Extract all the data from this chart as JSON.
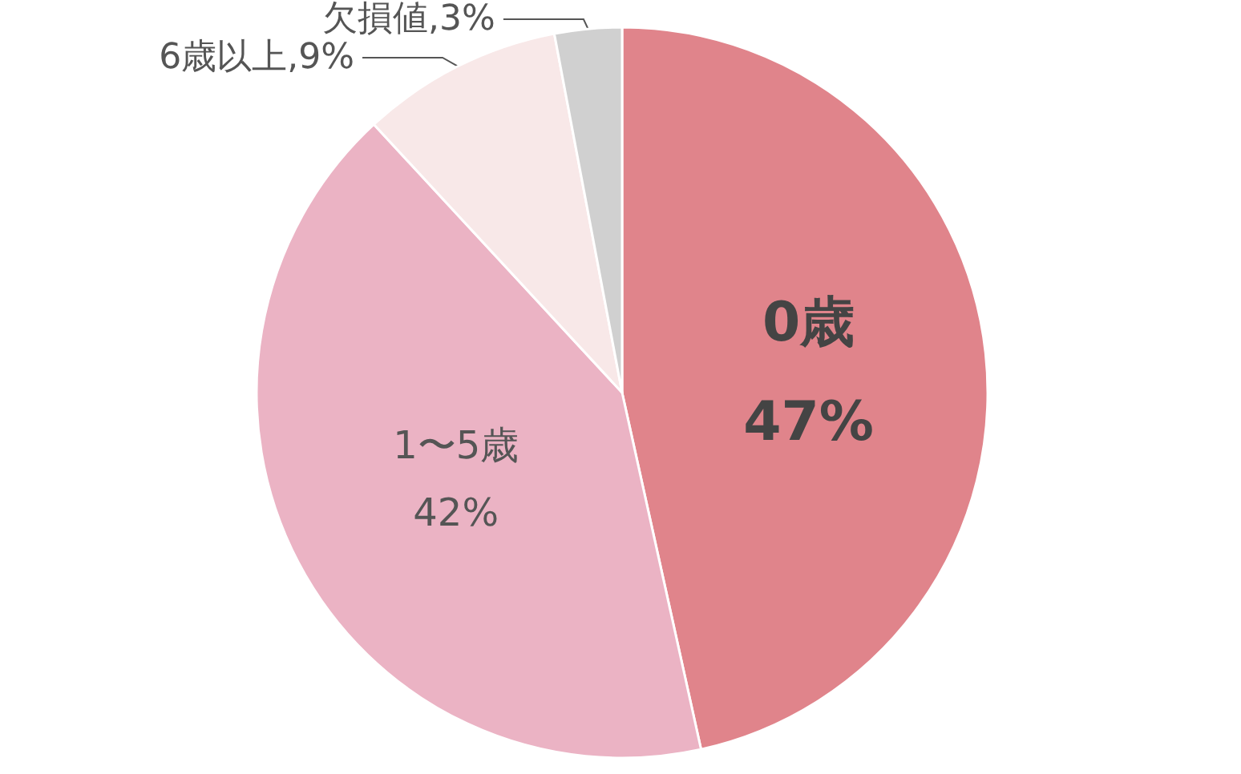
{
  "chart_data": {
    "type": "pie",
    "categories": [
      "0歳",
      "1〜5歳",
      "6歳以上",
      "欠損値"
    ],
    "values": [
      47,
      42,
      9,
      3
    ],
    "value_labels": [
      "47%",
      "42%",
      "9%",
      "3%"
    ],
    "colors": [
      "#e0848b",
      "#ebb3c4",
      "#f8e8e8",
      "#d0d0d0"
    ],
    "legend": false
  }
}
